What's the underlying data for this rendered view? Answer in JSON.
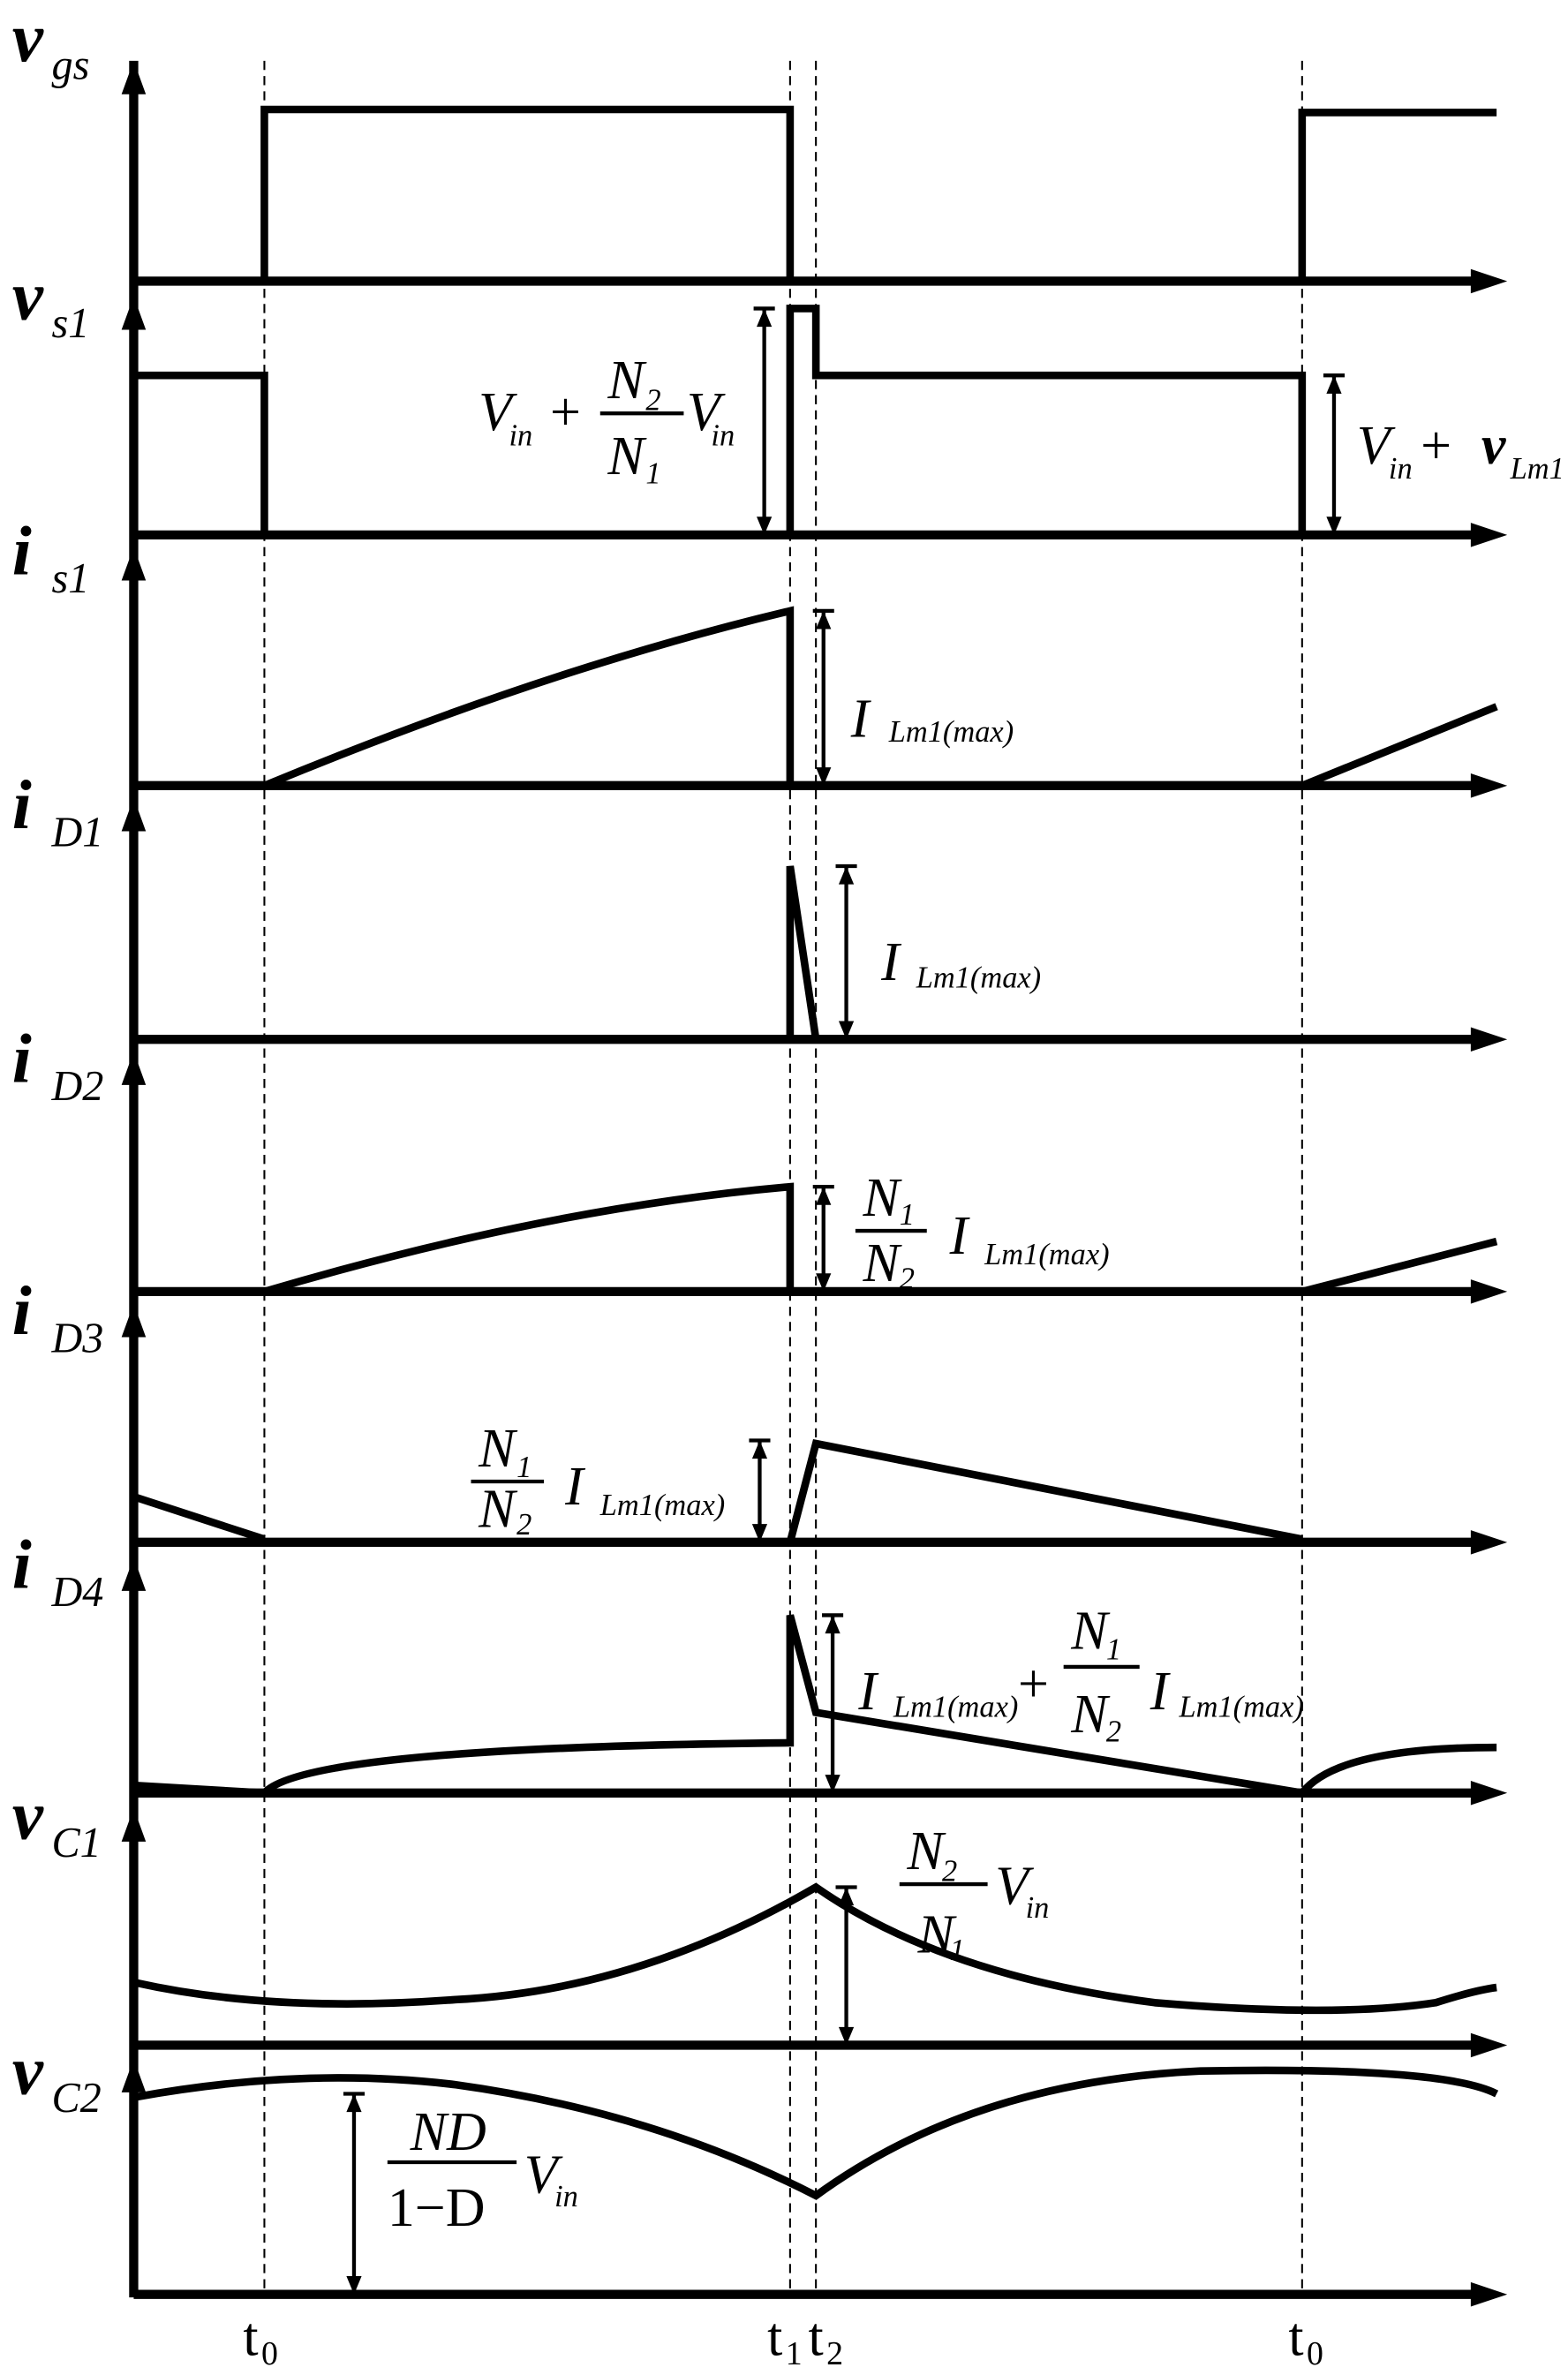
{
  "signals": [
    {
      "symbol": "v",
      "subscript": "gs"
    },
    {
      "symbol": "v",
      "subscript": "s1"
    },
    {
      "symbol": "i",
      "subscript": "s1"
    },
    {
      "symbol": "i",
      "subscript": "D1"
    },
    {
      "symbol": "i",
      "subscript": "D2"
    },
    {
      "symbol": "i",
      "subscript": "D3"
    },
    {
      "symbol": "i",
      "subscript": "D4"
    },
    {
      "symbol": "v",
      "subscript": "C1"
    },
    {
      "symbol": "v",
      "subscript": "C2"
    }
  ],
  "time_markers": [
    {
      "symbol": "t",
      "subscript": "0"
    },
    {
      "symbol": "t",
      "subscript": "1"
    },
    {
      "symbol": "t",
      "subscript": "2"
    },
    {
      "symbol": "t",
      "subscript": "0"
    }
  ],
  "annotations": [
    {
      "parts": [
        "V",
        "in",
        "+",
        "N",
        "2",
        "N",
        "1",
        "V",
        "in"
      ]
    },
    {
      "parts": [
        "V",
        "in",
        "+",
        "v",
        "Lm1"
      ]
    },
    {
      "parts": [
        "I",
        "Lm1(max)"
      ]
    },
    {
      "parts": [
        "I",
        "Lm1(max)"
      ]
    },
    {
      "parts": [
        "N",
        "1",
        "N",
        "2",
        "I",
        "Lm1(max)"
      ]
    },
    {
      "parts": [
        "N",
        "1",
        "N",
        "2",
        "I",
        "Lm1(max)"
      ]
    },
    {
      "parts": [
        "I",
        "Lm1(max)",
        "+",
        "N",
        "1",
        "N",
        "2",
        "I",
        "Lm1(max)"
      ]
    },
    {
      "parts": [
        "N",
        "2",
        "N",
        "1",
        "V",
        "in"
      ]
    },
    {
      "parts": [
        "ND",
        "1−D",
        "V",
        "in"
      ]
    }
  ]
}
